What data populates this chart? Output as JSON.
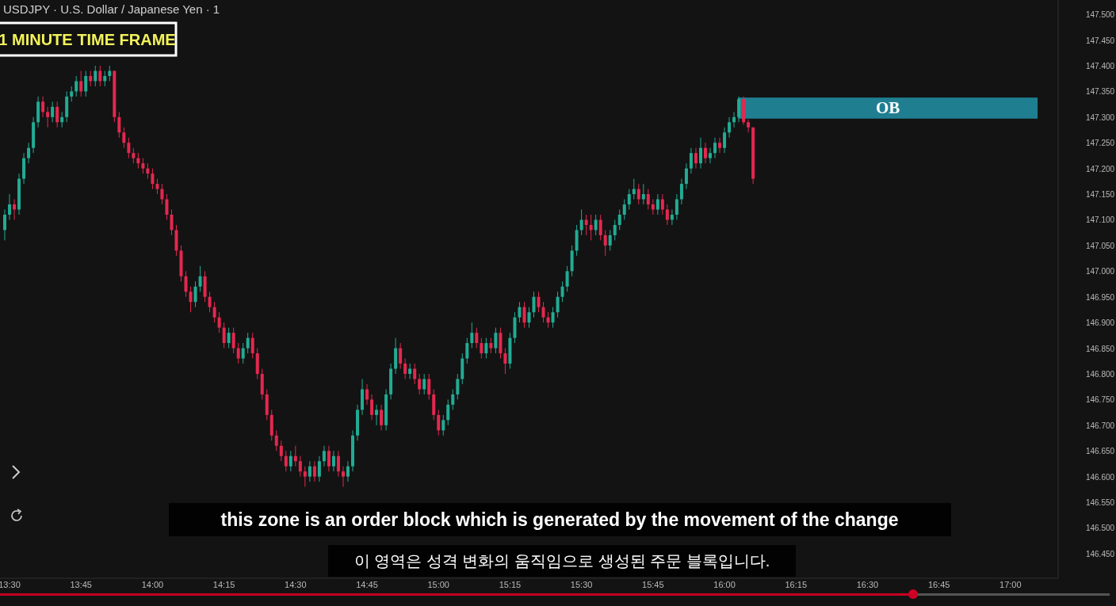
{
  "chart_data": {
    "type": "candlestick",
    "title": "USDJPY · U.S. Dollar / Japanese Yen · 1",
    "x": [
      13.4833,
      13.5,
      13.5167,
      13.5333,
      13.55,
      13.5667,
      13.5833,
      13.6,
      13.6167,
      13.6333,
      13.65,
      13.6667,
      13.6833,
      13.7,
      13.7167,
      13.7333,
      13.75,
      13.7667,
      13.7833,
      13.8,
      13.8167,
      13.8333,
      13.85,
      13.8667,
      13.8833,
      13.9,
      13.9167,
      13.9333,
      13.95,
      13.9667,
      13.9833,
      14,
      14.0167,
      14.0333,
      14.05,
      14.0667,
      14.0833,
      14.1,
      14.1167,
      14.1333,
      14.15,
      14.1667,
      14.1833,
      14.2,
      14.2167,
      14.2333,
      14.25,
      14.2667,
      14.2833,
      14.3,
      14.3167,
      14.3333,
      14.35,
      14.3667,
      14.3833,
      14.4,
      14.4167,
      14.4333,
      14.45,
      14.4667,
      14.4833,
      14.5,
      14.5167,
      14.5333,
      14.55,
      14.5667,
      14.5833,
      14.6,
      14.6167,
      14.6333,
      14.65,
      14.6667,
      14.6833,
      14.7,
      14.7167,
      14.7333,
      14.75,
      14.7667,
      14.7833,
      14.8,
      14.8167,
      14.8333,
      14.85,
      14.8667,
      14.8833,
      14.9,
      14.9167,
      14.9333,
      14.95,
      14.9667,
      14.9833,
      15,
      15.0167,
      15.0333,
      15.05,
      15.0667,
      15.0833,
      15.1,
      15.1167,
      15.1333,
      15.15,
      15.1667,
      15.1833,
      15.2,
      15.2167,
      15.2333,
      15.25,
      15.2667,
      15.2833,
      15.3,
      15.3167,
      15.3333,
      15.35,
      15.3667,
      15.3833,
      15.4,
      15.4167,
      15.4333,
      15.45,
      15.4667,
      15.4833,
      15.5,
      15.5167,
      15.5333,
      15.55,
      15.5667,
      15.5833,
      15.6,
      15.6167,
      15.6333,
      15.65,
      15.6667,
      15.6833,
      15.7,
      15.7167,
      15.7333,
      15.75,
      15.7667,
      15.7833,
      15.8,
      15.8167,
      15.8333,
      15.85,
      15.8667,
      15.8833,
      15.9,
      15.9167,
      15.9333,
      15.95,
      15.9667,
      15.9833,
      16,
      16.0167,
      16.0333,
      16.05,
      16.0667,
      16.0833,
      16.1
    ],
    "ohlc": [
      [
        147.08,
        147.12,
        147.06,
        147.11
      ],
      [
        147.11,
        147.15,
        147.1,
        147.13
      ],
      [
        147.13,
        147.14,
        147.1,
        147.12
      ],
      [
        147.12,
        147.19,
        147.11,
        147.18
      ],
      [
        147.18,
        147.23,
        147.17,
        147.22
      ],
      [
        147.22,
        147.25,
        147.21,
        147.24
      ],
      [
        147.24,
        147.3,
        147.23,
        147.29
      ],
      [
        147.29,
        147.34,
        147.28,
        147.33
      ],
      [
        147.33,
        147.34,
        147.3,
        147.31
      ],
      [
        147.31,
        147.32,
        147.28,
        147.3
      ],
      [
        147.3,
        147.33,
        147.29,
        147.32
      ],
      [
        147.32,
        147.33,
        147.28,
        147.29
      ],
      [
        147.29,
        147.31,
        147.28,
        147.3
      ],
      [
        147.3,
        147.35,
        147.29,
        147.34
      ],
      [
        147.34,
        147.36,
        147.33,
        147.35
      ],
      [
        147.35,
        147.38,
        147.34,
        147.37
      ],
      [
        147.37,
        147.39,
        147.34,
        147.35
      ],
      [
        147.35,
        147.39,
        147.34,
        147.38
      ],
      [
        147.38,
        147.39,
        147.36,
        147.37
      ],
      [
        147.37,
        147.4,
        147.36,
        147.39
      ],
      [
        147.39,
        147.4,
        147.36,
        147.37
      ],
      [
        147.37,
        147.39,
        147.36,
        147.38
      ],
      [
        147.38,
        147.4,
        147.37,
        147.39
      ],
      [
        147.39,
        147.39,
        147.29,
        147.3
      ],
      [
        147.3,
        147.31,
        147.26,
        147.27
      ],
      [
        147.27,
        147.28,
        147.24,
        147.25
      ],
      [
        147.25,
        147.26,
        147.22,
        147.23
      ],
      [
        147.23,
        147.24,
        147.21,
        147.22
      ],
      [
        147.22,
        147.23,
        147.2,
        147.21
      ],
      [
        147.21,
        147.22,
        147.19,
        147.2
      ],
      [
        147.2,
        147.21,
        147.18,
        147.19
      ],
      [
        147.19,
        147.2,
        147.16,
        147.17
      ],
      [
        147.17,
        147.18,
        147.15,
        147.16
      ],
      [
        147.16,
        147.17,
        147.13,
        147.14
      ],
      [
        147.14,
        147.15,
        147.1,
        147.11
      ],
      [
        147.11,
        147.12,
        147.07,
        147.08
      ],
      [
        147.08,
        147.09,
        147.03,
        147.04
      ],
      [
        147.04,
        147.05,
        146.98,
        146.99
      ],
      [
        146.99,
        147.0,
        146.95,
        146.96
      ],
      [
        146.96,
        146.97,
        146.92,
        146.94
      ],
      [
        146.94,
        146.98,
        146.93,
        146.97
      ],
      [
        146.97,
        147.01,
        146.96,
        146.99
      ],
      [
        146.99,
        147.0,
        146.94,
        146.95
      ],
      [
        146.95,
        146.96,
        146.92,
        146.93
      ],
      [
        146.93,
        146.94,
        146.9,
        146.91
      ],
      [
        146.91,
        146.92,
        146.88,
        146.89
      ],
      [
        146.89,
        146.9,
        146.85,
        146.86
      ],
      [
        146.86,
        146.89,
        146.85,
        146.88
      ],
      [
        146.88,
        146.89,
        146.84,
        146.85
      ],
      [
        146.85,
        146.86,
        146.82,
        146.83
      ],
      [
        146.83,
        146.86,
        146.82,
        146.85
      ],
      [
        146.85,
        146.88,
        146.84,
        146.87
      ],
      [
        146.87,
        146.88,
        146.83,
        146.84
      ],
      [
        146.84,
        146.85,
        146.79,
        146.8
      ],
      [
        146.8,
        146.81,
        146.75,
        146.76
      ],
      [
        146.76,
        146.77,
        146.71,
        146.72
      ],
      [
        146.72,
        146.73,
        146.67,
        146.68
      ],
      [
        146.68,
        146.69,
        146.65,
        146.66
      ],
      [
        146.66,
        146.67,
        146.63,
        146.64
      ],
      [
        146.64,
        146.65,
        146.61,
        146.62
      ],
      [
        146.62,
        146.65,
        146.61,
        146.64
      ],
      [
        146.64,
        146.66,
        146.62,
        146.63
      ],
      [
        146.63,
        146.64,
        146.6,
        146.61
      ],
      [
        146.61,
        146.62,
        146.58,
        146.6
      ],
      [
        146.6,
        146.63,
        146.59,
        146.62
      ],
      [
        146.62,
        146.63,
        146.59,
        146.6
      ],
      [
        146.6,
        146.64,
        146.59,
        146.63
      ],
      [
        146.63,
        146.66,
        146.62,
        146.65
      ],
      [
        146.65,
        146.66,
        146.61,
        146.62
      ],
      [
        146.62,
        146.65,
        146.61,
        146.64
      ],
      [
        146.64,
        146.65,
        146.6,
        146.61
      ],
      [
        146.61,
        146.62,
        146.58,
        146.6
      ],
      [
        146.6,
        146.63,
        146.59,
        146.62
      ],
      [
        146.62,
        146.69,
        146.61,
        146.68
      ],
      [
        146.68,
        146.74,
        146.67,
        146.73
      ],
      [
        146.73,
        146.79,
        146.72,
        146.77
      ],
      [
        146.77,
        146.78,
        146.74,
        146.75
      ],
      [
        146.75,
        146.76,
        146.71,
        146.72
      ],
      [
        146.72,
        146.74,
        146.7,
        146.73
      ],
      [
        146.73,
        146.74,
        146.69,
        146.7
      ],
      [
        146.7,
        146.77,
        146.69,
        146.76
      ],
      [
        146.76,
        146.82,
        146.75,
        146.81
      ],
      [
        146.81,
        146.87,
        146.8,
        146.85
      ],
      [
        146.85,
        146.86,
        146.81,
        146.82
      ],
      [
        146.82,
        146.83,
        146.79,
        146.8
      ],
      [
        146.8,
        146.82,
        146.79,
        146.81
      ],
      [
        146.81,
        146.82,
        146.78,
        146.79
      ],
      [
        146.79,
        146.8,
        146.76,
        146.77
      ],
      [
        146.77,
        146.8,
        146.76,
        146.79
      ],
      [
        146.79,
        146.8,
        146.75,
        146.76
      ],
      [
        146.76,
        146.77,
        146.71,
        146.72
      ],
      [
        146.72,
        146.73,
        146.68,
        146.69
      ],
      [
        146.69,
        146.72,
        146.68,
        146.71
      ],
      [
        146.71,
        146.75,
        146.7,
        146.74
      ],
      [
        146.74,
        146.77,
        146.73,
        146.76
      ],
      [
        146.76,
        146.8,
        146.75,
        146.79
      ],
      [
        146.79,
        146.84,
        146.78,
        146.83
      ],
      [
        146.83,
        146.87,
        146.82,
        146.86
      ],
      [
        146.86,
        146.9,
        146.85,
        146.88
      ],
      [
        146.88,
        146.89,
        146.85,
        146.86
      ],
      [
        146.86,
        146.87,
        146.83,
        146.84
      ],
      [
        146.84,
        146.87,
        146.83,
        146.86
      ],
      [
        146.86,
        146.87,
        146.84,
        146.85
      ],
      [
        146.85,
        146.89,
        146.84,
        146.88
      ],
      [
        146.88,
        146.89,
        146.83,
        146.84
      ],
      [
        146.84,
        146.85,
        146.8,
        146.82
      ],
      [
        146.82,
        146.88,
        146.81,
        146.87
      ],
      [
        146.87,
        146.92,
        146.86,
        146.91
      ],
      [
        146.91,
        146.94,
        146.9,
        146.93
      ],
      [
        146.93,
        146.94,
        146.89,
        146.9
      ],
      [
        146.9,
        146.93,
        146.89,
        146.92
      ],
      [
        146.92,
        146.96,
        146.91,
        146.95
      ],
      [
        146.95,
        146.96,
        146.92,
        146.93
      ],
      [
        146.93,
        146.94,
        146.9,
        146.91
      ],
      [
        146.91,
        146.92,
        146.89,
        146.9
      ],
      [
        146.9,
        146.93,
        146.89,
        146.92
      ],
      [
        146.92,
        146.96,
        146.91,
        146.95
      ],
      [
        146.95,
        146.98,
        146.94,
        146.97
      ],
      [
        146.97,
        147.01,
        146.96,
        147.0
      ],
      [
        147.0,
        147.05,
        146.99,
        147.04
      ],
      [
        147.04,
        147.09,
        147.03,
        147.08
      ],
      [
        147.08,
        147.12,
        147.07,
        147.1
      ],
      [
        147.1,
        147.11,
        147.07,
        147.09
      ],
      [
        147.09,
        147.11,
        147.06,
        147.08
      ],
      [
        147.08,
        147.11,
        147.07,
        147.1
      ],
      [
        147.1,
        147.11,
        147.06,
        147.07
      ],
      [
        147.07,
        147.08,
        147.03,
        147.05
      ],
      [
        147.05,
        147.08,
        147.04,
        147.07
      ],
      [
        147.07,
        147.1,
        147.06,
        147.09
      ],
      [
        147.09,
        147.12,
        147.08,
        147.11
      ],
      [
        147.11,
        147.14,
        147.1,
        147.13
      ],
      [
        147.13,
        147.16,
        147.12,
        147.15
      ],
      [
        147.15,
        147.18,
        147.14,
        147.16
      ],
      [
        147.16,
        147.17,
        147.13,
        147.14
      ],
      [
        147.14,
        147.17,
        147.13,
        147.15
      ],
      [
        147.15,
        147.16,
        147.12,
        147.13
      ],
      [
        147.13,
        147.14,
        147.11,
        147.12
      ],
      [
        147.12,
        147.15,
        147.11,
        147.14
      ],
      [
        147.14,
        147.15,
        147.11,
        147.12
      ],
      [
        147.12,
        147.13,
        147.09,
        147.1
      ],
      [
        147.1,
        147.12,
        147.09,
        147.11
      ],
      [
        147.11,
        147.15,
        147.1,
        147.14
      ],
      [
        147.14,
        147.18,
        147.13,
        147.17
      ],
      [
        147.17,
        147.21,
        147.16,
        147.2
      ],
      [
        147.2,
        147.24,
        147.19,
        147.23
      ],
      [
        147.23,
        147.24,
        147.2,
        147.21
      ],
      [
        147.21,
        147.26,
        147.2,
        147.24
      ],
      [
        147.24,
        147.25,
        147.21,
        147.22
      ],
      [
        147.22,
        147.24,
        147.21,
        147.23
      ],
      [
        147.23,
        147.26,
        147.22,
        147.25
      ],
      [
        147.25,
        147.26,
        147.23,
        147.24
      ],
      [
        147.24,
        147.28,
        147.23,
        147.27
      ],
      [
        147.27,
        147.3,
        147.26,
        147.29
      ],
      [
        147.29,
        147.31,
        147.28,
        147.3
      ],
      [
        147.3,
        147.34,
        147.29,
        147.335
      ],
      [
        147.335,
        147.34,
        147.285,
        147.29
      ],
      [
        147.29,
        147.295,
        147.27,
        147.28
      ],
      [
        147.28,
        147.28,
        147.17,
        147.18
      ]
    ],
    "xlim": [
      13.4667,
      17.1667
    ],
    "xticks": [
      {
        "value": 13.5,
        "label": "13:30"
      },
      {
        "value": 13.75,
        "label": "13:45"
      },
      {
        "value": 14,
        "label": "14:00"
      },
      {
        "value": 14.25,
        "label": "14:15"
      },
      {
        "value": 14.5,
        "label": "14:30"
      },
      {
        "value": 14.75,
        "label": "14:45"
      },
      {
        "value": 15,
        "label": "15:00"
      },
      {
        "value": 15.25,
        "label": "15:15"
      },
      {
        "value": 15.5,
        "label": "15:30"
      },
      {
        "value": 15.75,
        "label": "15:45"
      },
      {
        "value": 16,
        "label": "16:00"
      },
      {
        "value": 16.25,
        "label": "16:15"
      },
      {
        "value": 16.5,
        "label": "16:30"
      },
      {
        "value": 16.75,
        "label": "16:45"
      },
      {
        "value": 17,
        "label": "17:00"
      }
    ],
    "ylim": [
      146.402,
      147.528
    ],
    "yticks": [
      {
        "value": 146.45,
        "label": "146.450"
      },
      {
        "value": 146.5,
        "label": "146.500"
      },
      {
        "value": 146.55,
        "label": "146.550"
      },
      {
        "value": 146.6,
        "label": "146.600"
      },
      {
        "value": 146.65,
        "label": "146.650"
      },
      {
        "value": 146.7,
        "label": "146.700"
      },
      {
        "value": 146.75,
        "label": "146.750"
      },
      {
        "value": 146.8,
        "label": "146.800"
      },
      {
        "value": 146.85,
        "label": "146.850"
      },
      {
        "value": 146.9,
        "label": "146.900"
      },
      {
        "value": 146.95,
        "label": "146.950"
      },
      {
        "value": 147.0,
        "label": "147.000"
      },
      {
        "value": 147.05,
        "label": "147.050"
      },
      {
        "value": 147.1,
        "label": "147.100"
      },
      {
        "value": 147.15,
        "label": "147.150"
      },
      {
        "value": 147.2,
        "label": "147.200"
      },
      {
        "value": 147.25,
        "label": "147.250"
      },
      {
        "value": 147.3,
        "label": "147.300"
      },
      {
        "value": 147.35,
        "label": "147.350"
      },
      {
        "value": 147.4,
        "label": "147.400"
      },
      {
        "value": 147.45,
        "label": "147.450"
      },
      {
        "value": 147.5,
        "label": "147.500"
      }
    ],
    "bands": [
      {
        "axis": "y",
        "from": 147.297,
        "to": 147.338,
        "label": "OB",
        "color": "#1f7f91"
      }
    ],
    "annotations": [
      "1 MINUTE TIME FRAME",
      "this zone is an order block which is generated by the movement of the change",
      "이 영역은 성격 변화의 움직임으로 생성된 주문 블록입니다."
    ],
    "grid": false
  }
}
